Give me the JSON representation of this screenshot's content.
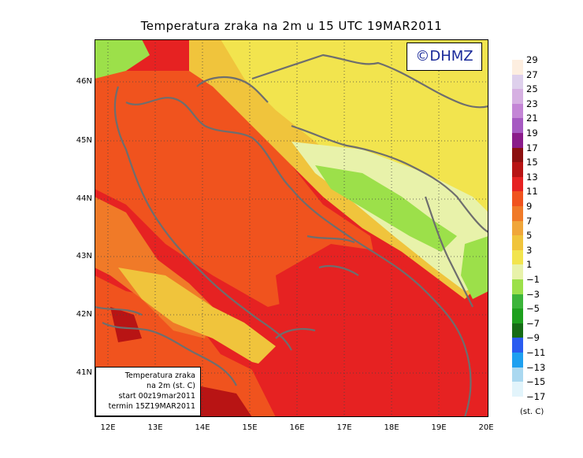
{
  "title": "Temperatura zraka na 2m u 15 UTC 19MAR2011",
  "logo": "©DHMZ",
  "info_box": {
    "line1": "Temperatura zraka",
    "line2": "na 2m (st. C)",
    "line3": "start 00z19mar2011",
    "line4": "termin 15Z19MAR2011"
  },
  "lat_labels": [
    "46N",
    "45N",
    "44N",
    "43N",
    "42N",
    "41N"
  ],
  "lon_labels": [
    "12E",
    "13E",
    "14E",
    "15E",
    "16E",
    "17E",
    "18E",
    "19E",
    "20E"
  ],
  "legend": {
    "labels": [
      "29",
      "27",
      "25",
      "23",
      "21",
      "19",
      "17",
      "15",
      "13",
      "11",
      "9",
      "7",
      "5",
      "3",
      "1",
      "−1",
      "−3",
      "−5",
      "−7",
      "−9",
      "−11",
      "−13",
      "−15",
      "−17"
    ],
    "colors": [
      "#fdeee0",
      "#ded0ec",
      "#d6b0e2",
      "#c486d6",
      "#a65ac2",
      "#8a1c8a",
      "#8c1010",
      "#b81414",
      "#e62222",
      "#f0531e",
      "#f07a28",
      "#f0a63a",
      "#f0c43c",
      "#f2e44e",
      "#e8f2aa",
      "#9ce04a",
      "#3cb43a",
      "#1ea01e",
      "#166c16",
      "#2a5cf0",
      "#1ea0f0",
      "#aad8f0",
      "#e2f4fb"
    ],
    "unit": "(st. C)"
  },
  "map_colors": {
    "ocean_warm": "#e62222",
    "land_cool": "#f2e44e",
    "coast": "#6e6e6e"
  }
}
